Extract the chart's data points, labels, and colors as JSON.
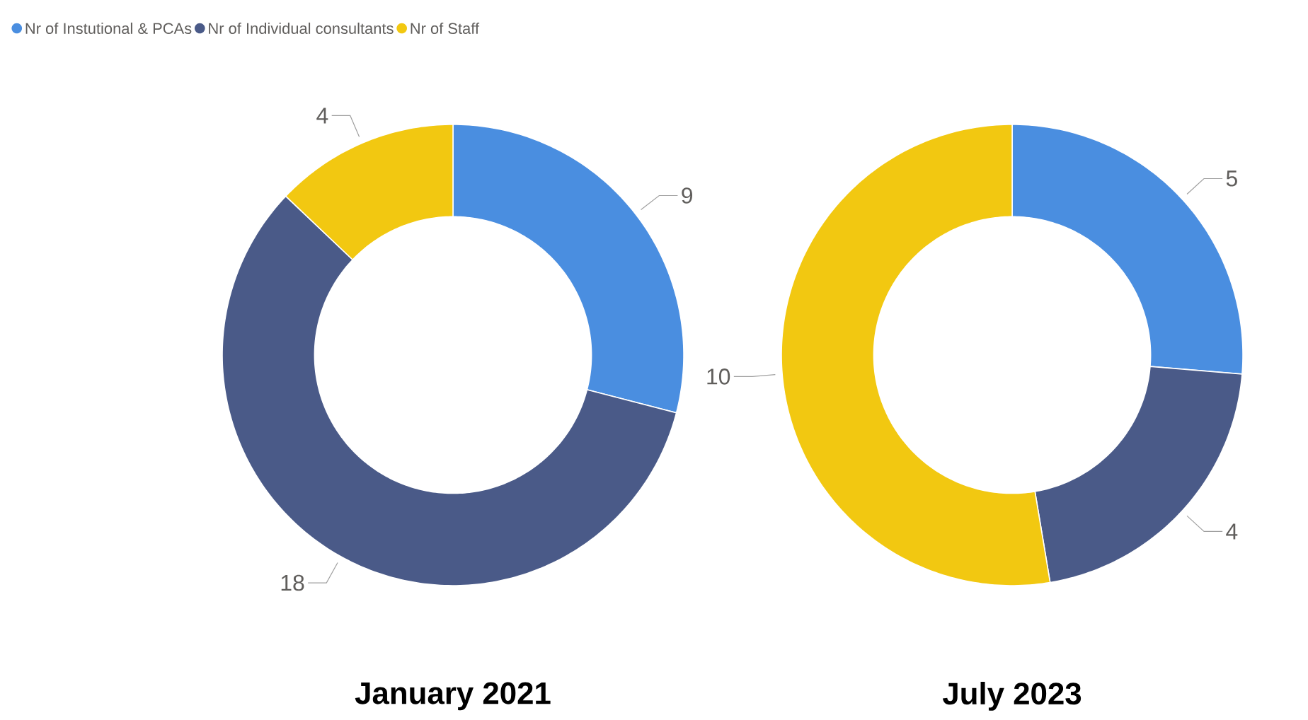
{
  "chart_data": [
    {
      "type": "donut",
      "title": "January 2021",
      "categories": [
        "Nr of Instutional & PCAs",
        "Nr of Individual consultants",
        "Nr of Staff"
      ],
      "values": [
        9,
        18,
        4
      ],
      "colors": [
        "#4a8ee0",
        "#4a5a88",
        "#f2c811"
      ],
      "data_labels": true,
      "legend": "top left"
    },
    {
      "type": "donut",
      "title": "July 2023",
      "values": [
        5,
        4,
        10
      ],
      "colors": [
        "#4a8ee0",
        "#4a5a88",
        "#f2c811"
      ],
      "data_labels": true
    }
  ]
}
